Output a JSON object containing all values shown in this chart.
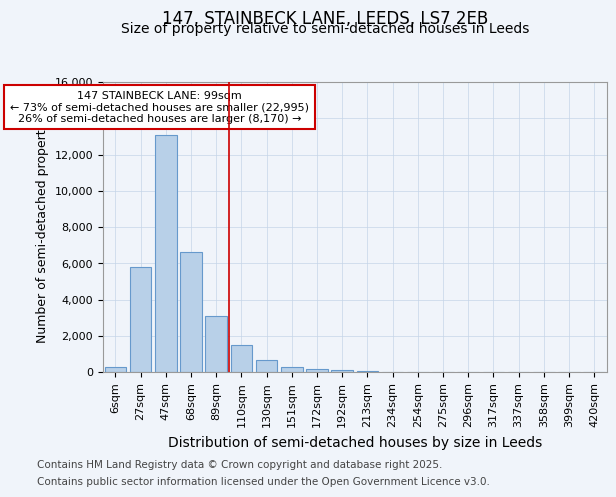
{
  "title1": "147, STAINBECK LANE, LEEDS, LS7 2EB",
  "title2": "Size of property relative to semi-detached houses in Leeds",
  "xlabel": "Distribution of semi-detached houses by size in Leeds",
  "ylabel": "Number of semi-detached properties",
  "categories": [
    "6sqm",
    "27sqm",
    "47sqm",
    "68sqm",
    "89sqm",
    "110sqm",
    "130sqm",
    "151sqm",
    "172sqm",
    "192sqm",
    "213sqm",
    "234sqm",
    "254sqm",
    "275sqm",
    "296sqm",
    "317sqm",
    "337sqm",
    "358sqm",
    "399sqm",
    "420sqm"
  ],
  "values": [
    300,
    5800,
    13100,
    6600,
    3100,
    1500,
    650,
    250,
    150,
    100,
    50,
    0,
    0,
    0,
    0,
    0,
    0,
    0,
    0,
    0
  ],
  "bar_color": "#b8d0e8",
  "bar_edge_color": "#6699cc",
  "vline_color": "#cc0000",
  "vline_pos": 4.5,
  "annotation_title": "147 STAINBECK LANE: 99sqm",
  "annotation_line1": "← 73% of semi-detached houses are smaller (22,995)",
  "annotation_line2": "26% of semi-detached houses are larger (8,170) →",
  "annotation_box_color": "#cc0000",
  "ylim": [
    0,
    16000
  ],
  "yticks": [
    0,
    2000,
    4000,
    6000,
    8000,
    10000,
    12000,
    14000,
    16000
  ],
  "background_color": "#f0f4fa",
  "plot_bg_color": "#f0f4fa",
  "footer1": "Contains HM Land Registry data © Crown copyright and database right 2025.",
  "footer2": "Contains public sector information licensed under the Open Government Licence v3.0.",
  "title1_fontsize": 12,
  "title2_fontsize": 10,
  "xlabel_fontsize": 10,
  "ylabel_fontsize": 9,
  "tick_fontsize": 8,
  "annotation_fontsize": 8,
  "footer_fontsize": 7.5
}
